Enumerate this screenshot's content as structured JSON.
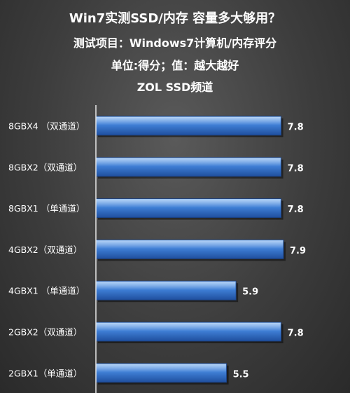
{
  "chart_data": {
    "type": "bar",
    "orientation": "horizontal",
    "title": "Win7实测SSD/内存  容量多大够用？",
    "subtitles": [
      "测试项目：Windows7计算机/内存评分",
      "单位:得分；值：越大越好",
      "ZOL SSD频道"
    ],
    "categories": [
      "8GBX4 （双通道）",
      "8GBX2（双通道）",
      "8GBX1 （单通道）",
      "4GBX2（双通道）",
      "4GBX1 （单通道）",
      "2GBX2（双通道）",
      "2GBX1（单通道）"
    ],
    "values": [
      7.8,
      7.8,
      7.8,
      7.9,
      5.9,
      7.8,
      5.5
    ],
    "data_labels": [
      "7.8",
      "7.8",
      "7.8",
      "7.9",
      "5.9",
      "7.8",
      "5.5"
    ],
    "xlim": [
      0,
      7.9
    ],
    "grid": false,
    "legend": "none",
    "colors": {
      "bar": "#3f7fd6",
      "bar_dark": "#1f4f9e",
      "bar_light": "#8fbdf2",
      "text": "#ffffff",
      "axis": "#e8e8e8"
    }
  }
}
